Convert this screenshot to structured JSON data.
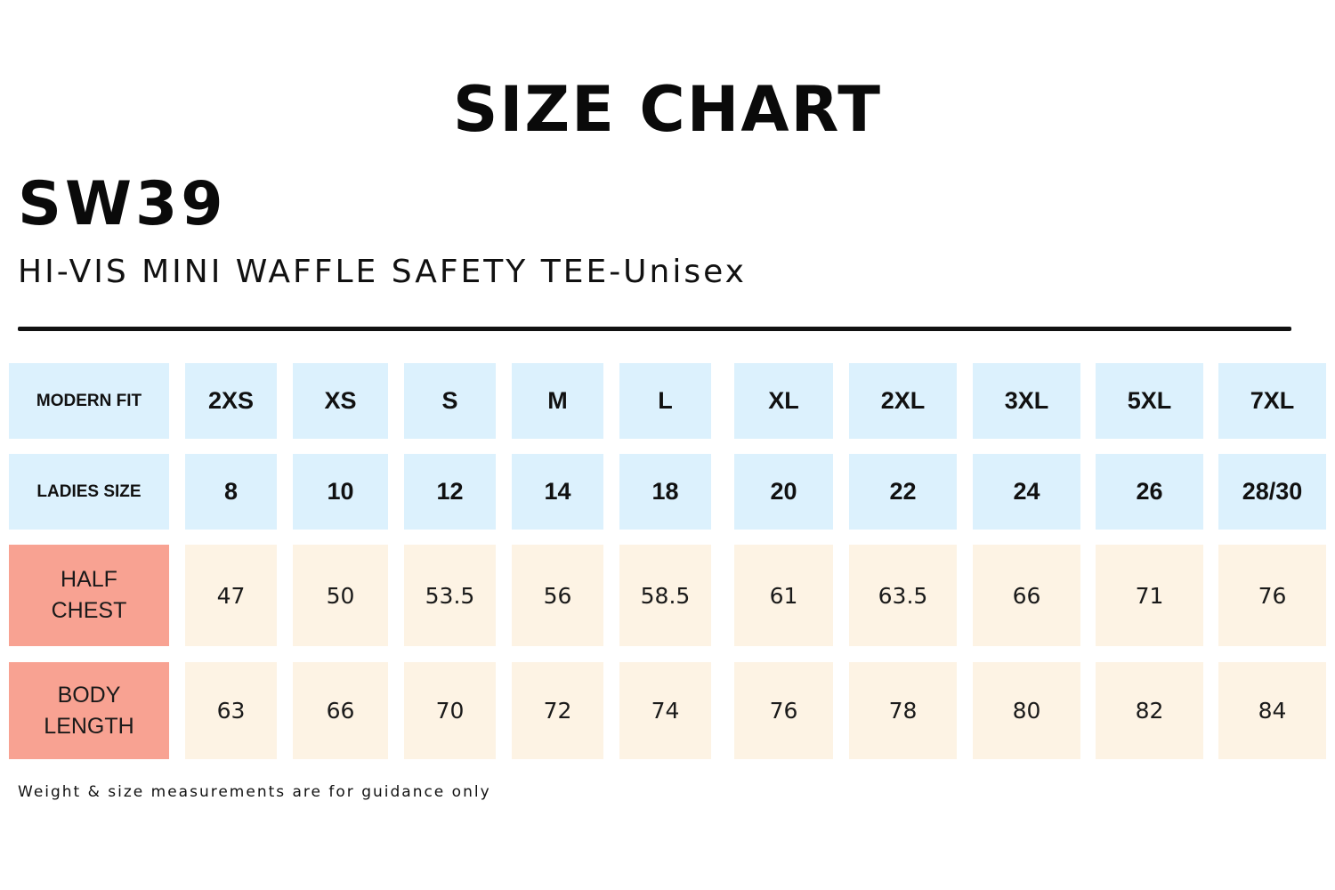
{
  "header": {
    "title": "SIZE CHART",
    "product_code": "SW39",
    "product_name": "HI-VIS MINI WAFFLE SAFETY TEE-Unisex"
  },
  "colors": {
    "header_cell_bg": "#dcf1fd",
    "measure_label_bg": "#f8a292",
    "measure_cell_bg": "#fdf3e4",
    "text": "#111111"
  },
  "table": {
    "rows": [
      {
        "label": "MODERN FIT",
        "values": [
          "2XS",
          "XS",
          "S",
          "M",
          "L",
          "XL",
          "2XL",
          "3XL",
          "5XL",
          "7XL"
        ]
      },
      {
        "label": "LADIES SIZE",
        "values": [
          "8",
          "10",
          "12",
          "14",
          "18",
          "20",
          "22",
          "24",
          "26",
          "28/30"
        ]
      },
      {
        "label": "HALF\nCHEST",
        "values": [
          "47",
          "50",
          "53.5",
          "56",
          "58.5",
          "61",
          "63.5",
          "66",
          "71",
          "76"
        ]
      },
      {
        "label": "BODY\nLENGTH",
        "values": [
          "63",
          "66",
          "70",
          "72",
          "74",
          "76",
          "78",
          "80",
          "82",
          "84"
        ]
      }
    ]
  },
  "footnote": "Weight & size measurements are for guidance only"
}
